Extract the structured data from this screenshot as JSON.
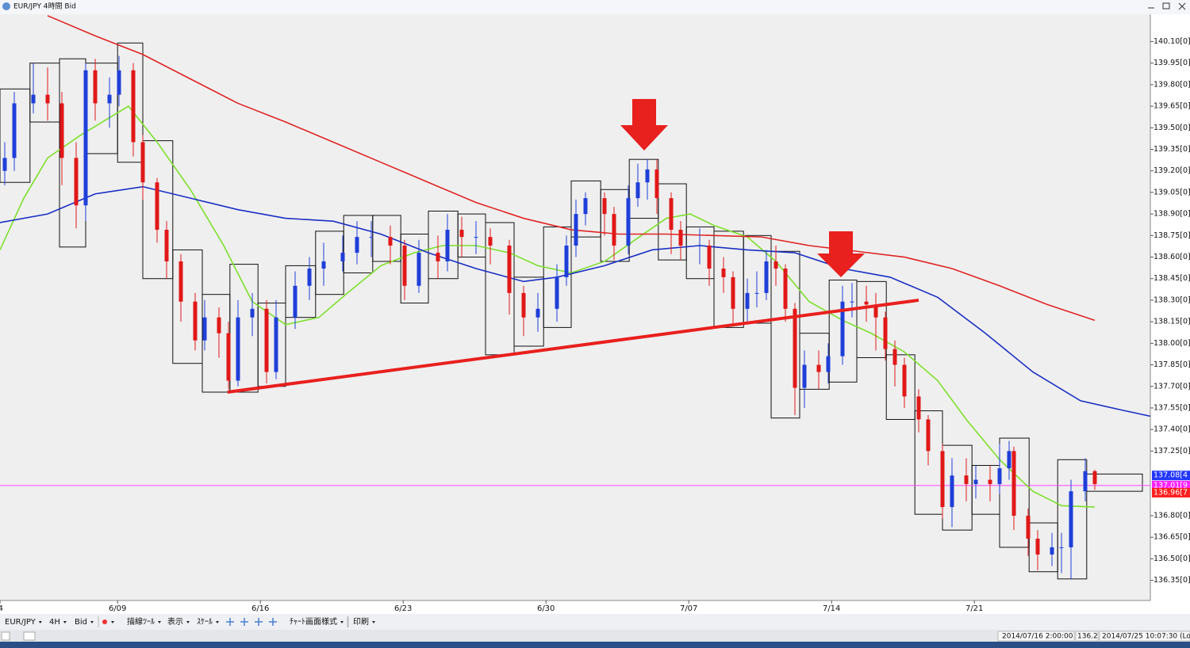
{
  "window": {
    "title": "EUR/JPY 4時間 Bid"
  },
  "chart_data": {
    "type": "candlestick",
    "x": [
      1,
      3,
      7,
      10,
      13,
      16,
      18,
      20,
      23,
      25,
      28,
      30,
      33,
      35,
      38,
      41,
      43,
      46,
      48,
      50,
      53,
      56,
      58,
      62,
      65,
      68,
      72,
      75,
      78,
      82,
      85,
      88,
      92,
      94,
      97,
      100,
      103,
      107,
      110,
      113,
      117,
      119,
      121,
      123,
      127,
      129,
      132,
      134,
      136,
      138,
      141,
      143,
      147,
      149,
      152,
      154,
      157,
      159,
      161,
      163,
      165,
      167,
      169,
      172,
      174,
      177,
      179,
      182,
      184,
      186,
      188,
      190,
      193,
      195,
      198,
      200,
      203,
      205,
      208,
      210,
      212,
      213,
      216,
      218,
      221,
      223,
      225,
      228,
      230
    ],
    "open": [
      139.2,
      139.29,
      139.67,
      139.73,
      139.67,
      139.29,
      138.96,
      139.9,
      139.67,
      139.73,
      139.9,
      139.4,
      139.12,
      138.79,
      138.57,
      138.29,
      138.02,
      138.18,
      138.07,
      137.74,
      138.18,
      138.24,
      137.8,
      138.18,
      138.4,
      138.52,
      138.57,
      138.63,
      138.74,
      138.74,
      138.68,
      138.4,
      138.63,
      138.57,
      138.79,
      138.74,
      138.74,
      138.68,
      138.35,
      138.18,
      138.24,
      138.46,
      138.68,
      138.9,
      139.01,
      138.9,
      138.68,
      139.01,
      139.12,
      139.21,
      139.01,
      138.79,
      138.68,
      138.68,
      138.52,
      138.46,
      138.24,
      138.35,
      138.35,
      138.57,
      138.52,
      138.24,
      137.69,
      137.85,
      137.8,
      137.91,
      138.29,
      138.29,
      138.27,
      138.18,
      137.96,
      137.85,
      137.63,
      137.47,
      137.25,
      136.86,
      137.08,
      137.02,
      137.05,
      137.02,
      137.13,
      137.25,
      136.8,
      136.64,
      136.53,
      136.58,
      136.58,
      136.97,
      137.11
    ],
    "high": [
      139.4,
      139.75,
      139.95,
      139.92,
      139.75,
      139.4,
      139.95,
      139.98,
      139.85,
      140.0,
      139.95,
      139.45,
      139.15,
      138.85,
      138.62,
      138.35,
      138.3,
      138.25,
      138.15,
      138.3,
      138.35,
      138.3,
      138.3,
      138.5,
      138.6,
      138.7,
      138.75,
      138.85,
      138.85,
      138.82,
      138.72,
      138.72,
      138.75,
      138.9,
      138.88,
      138.85,
      138.8,
      138.72,
      138.4,
      138.35,
      138.55,
      138.75,
      139.0,
      139.05,
      139.05,
      138.95,
      139.1,
      139.25,
      139.28,
      139.28,
      139.05,
      138.85,
      138.8,
      138.72,
      138.6,
      138.5,
      138.45,
      138.5,
      138.65,
      138.68,
      138.55,
      138.28,
      137.95,
      137.95,
      138.0,
      138.4,
      138.42,
      138.4,
      138.35,
      138.22,
      138.02,
      137.9,
      137.68,
      137.5,
      137.3,
      137.2,
      137.2,
      137.15,
      137.15,
      137.3,
      137.32,
      137.28,
      136.85,
      136.7,
      136.68,
      136.68,
      137.05,
      137.2,
      137.12
    ],
    "low": [
      139.1,
      139.2,
      139.6,
      139.55,
      139.1,
      138.8,
      138.85,
      139.55,
      139.5,
      139.65,
      139.3,
      139.0,
      138.7,
      138.45,
      138.15,
      137.95,
      137.95,
      137.9,
      137.68,
      137.7,
      138.05,
      137.72,
      137.75,
      138.1,
      138.3,
      138.4,
      138.5,
      138.55,
      138.6,
      138.55,
      138.3,
      138.35,
      138.45,
      138.5,
      138.6,
      138.62,
      138.55,
      138.2,
      138.05,
      138.08,
      138.15,
      138.4,
      138.6,
      138.82,
      138.75,
      138.58,
      138.62,
      138.95,
      139.0,
      138.9,
      138.62,
      138.58,
      138.55,
      138.4,
      138.35,
      138.12,
      138.15,
      138.25,
      138.3,
      138.4,
      138.15,
      137.5,
      137.55,
      137.68,
      137.72,
      137.85,
      138.18,
      138.15,
      137.95,
      137.88,
      137.7,
      137.55,
      137.38,
      137.15,
      136.78,
      136.72,
      136.9,
      136.92,
      136.9,
      136.95,
      137.05,
      136.7,
      136.52,
      136.42,
      136.45,
      136.4,
      136.36,
      136.9,
      136.98
    ],
    "close": [
      139.29,
      139.67,
      139.73,
      139.67,
      139.29,
      138.96,
      139.9,
      139.67,
      139.73,
      139.9,
      139.4,
      139.12,
      138.79,
      138.57,
      138.29,
      138.02,
      138.18,
      138.07,
      137.74,
      138.18,
      138.24,
      137.8,
      138.18,
      138.4,
      138.52,
      138.57,
      138.63,
      138.74,
      138.74,
      138.68,
      138.4,
      138.63,
      138.57,
      138.79,
      138.74,
      138.74,
      138.68,
      138.35,
      138.18,
      138.24,
      138.46,
      138.68,
      138.9,
      139.01,
      138.9,
      138.68,
      139.01,
      139.12,
      139.21,
      139.01,
      138.79,
      138.68,
      138.68,
      138.52,
      138.46,
      138.24,
      138.35,
      138.35,
      138.57,
      138.52,
      138.24,
      137.69,
      137.85,
      137.8,
      137.91,
      138.29,
      138.29,
      138.27,
      138.18,
      137.96,
      137.85,
      137.63,
      137.47,
      137.25,
      136.86,
      137.08,
      137.02,
      137.05,
      137.02,
      137.13,
      137.25,
      136.8,
      136.64,
      136.53,
      136.58,
      136.58,
      136.97,
      137.11,
      137.02
    ],
    "up_color": "#1f3fd8",
    "down_color": "#e01818",
    "boxes": {
      "x0": [
        0,
        6.3,
        12.5,
        18,
        24.7,
        30,
        36.3,
        42.5,
        48.3,
        54.2,
        60,
        66.3,
        72.2,
        78.3,
        84.2,
        90,
        96.2,
        102,
        108,
        114.2,
        120,
        126.2,
        132.2,
        138.3,
        144.2,
        150,
        156.2,
        162,
        168,
        174.2,
        180,
        186.2,
        192.2,
        198,
        204.2,
        210,
        216.2,
        222.2,
        228.3
      ],
      "x1": [
        6.3,
        12.5,
        18,
        24.7,
        30,
        36.3,
        42.5,
        48.3,
        54.2,
        60,
        66.3,
        72.2,
        78.3,
        84.2,
        90,
        96.2,
        102,
        108,
        114.2,
        120,
        126.2,
        132.2,
        138.3,
        144.2,
        150,
        156.2,
        162,
        168,
        174.2,
        180,
        186.2,
        192.2,
        198,
        204.2,
        210,
        216.2,
        222.2,
        228.3,
        240
      ],
      "high": [
        139.77,
        139.95,
        139.98,
        139.95,
        140.09,
        139.41,
        138.65,
        138.34,
        138.55,
        138.28,
        138.54,
        138.78,
        138.89,
        138.89,
        138.76,
        138.92,
        138.9,
        138.84,
        138.46,
        138.81,
        139.13,
        139.07,
        139.28,
        139.11,
        138.81,
        138.78,
        138.75,
        138.64,
        138.07,
        138.44,
        138.43,
        137.92,
        137.53,
        137.29,
        137.15,
        137.34,
        136.75,
        137.19,
        137.09
      ],
      "low": [
        139.12,
        139.54,
        138.67,
        139.32,
        139.26,
        138.45,
        137.86,
        137.66,
        137.66,
        137.7,
        138.18,
        138.34,
        138.49,
        138.57,
        138.28,
        138.45,
        138.6,
        137.92,
        137.98,
        138.11,
        138.74,
        138.57,
        138.87,
        138.58,
        138.45,
        138.11,
        138.14,
        137.48,
        137.68,
        137.73,
        137.9,
        137.47,
        136.81,
        136.7,
        136.81,
        136.58,
        136.41,
        136.36,
        136.97
      ]
    },
    "lines": [
      {
        "color": "#7de02a",
        "x": [
          0,
          5,
          10,
          17,
          27,
          33,
          40,
          47,
          53,
          60,
          67,
          73,
          80,
          87,
          93,
          100,
          107,
          113,
          120,
          127,
          133,
          140,
          145,
          150,
          157,
          163,
          170,
          177,
          183,
          190,
          197,
          203,
          210,
          217,
          223,
          230
        ],
        "values": [
          138.65,
          139.01,
          139.29,
          139.45,
          139.65,
          139.4,
          139.07,
          138.68,
          138.29,
          138.13,
          138.18,
          138.35,
          138.54,
          138.63,
          138.68,
          138.68,
          138.63,
          138.54,
          138.49,
          138.57,
          138.71,
          138.87,
          138.9,
          138.82,
          138.74,
          138.57,
          138.29,
          138.16,
          138.07,
          137.94,
          137.74,
          137.47,
          137.19,
          136.97,
          136.87,
          136.86
        ]
      },
      {
        "color": "#1a2fc4",
        "x": [
          0,
          10,
          20,
          30,
          40,
          50,
          60,
          70,
          80,
          90,
          100,
          110,
          117,
          127,
          137,
          147,
          157,
          167,
          177,
          187,
          197,
          207,
          217,
          227,
          235,
          242
        ],
        "values": [
          138.84,
          138.9,
          139.04,
          139.09,
          139.01,
          138.93,
          138.87,
          138.85,
          138.76,
          138.63,
          138.52,
          138.43,
          138.46,
          138.54,
          138.65,
          138.68,
          138.65,
          138.63,
          138.52,
          138.46,
          138.32,
          138.07,
          137.8,
          137.6,
          137.54,
          137.49
        ]
      },
      {
        "color": "#e02424",
        "x": [
          10,
          20,
          30,
          40,
          50,
          60,
          70,
          80,
          90,
          100,
          110,
          120,
          130,
          140,
          150,
          160,
          170,
          180,
          190,
          200,
          210,
          220,
          230
        ],
        "values": [
          140.28,
          140.14,
          140.01,
          139.84,
          139.67,
          139.54,
          139.4,
          139.26,
          139.12,
          138.98,
          138.87,
          138.79,
          138.76,
          138.76,
          138.75,
          138.74,
          138.68,
          138.64,
          138.6,
          138.52,
          138.4,
          138.27,
          138.16
        ]
      }
    ],
    "trendline": {
      "color": "#e8201e",
      "x": [
        47.8,
        193
      ],
      "values": [
        137.66,
        138.3
      ]
    },
    "price_tags": [
      {
        "value": 137.08,
        "label": "137.08[4",
        "color": "#2236ff"
      },
      {
        "value": 137.01,
        "label": "137.01[9",
        "color": "#ff22ff"
      },
      {
        "value": 136.96,
        "label": "136.96[7",
        "color": "#ff2020"
      }
    ],
    "current_line_color": "#ff44ff",
    "xlim": [
      0,
      242
    ],
    "ylim": [
      136.21,
      140.29
    ],
    "xticks": [
      {
        "value": 0,
        "label": "4"
      },
      {
        "value": 24.7,
        "label": "6/09"
      },
      {
        "value": 54.7,
        "label": "6/16"
      },
      {
        "value": 84.7,
        "label": "6/23"
      },
      {
        "value": 114.7,
        "label": "6/30"
      },
      {
        "value": 144.7,
        "label": "7/07"
      },
      {
        "value": 174.7,
        "label": "7/14"
      },
      {
        "value": 204.7,
        "label": "7/21"
      }
    ],
    "yticks": [
      {
        "value": 140.1,
        "label": "140.10[0]"
      },
      {
        "value": 139.95,
        "label": "139.95[0]"
      },
      {
        "value": 139.8,
        "label": "139.80[0]"
      },
      {
        "value": 139.65,
        "label": "139.65[0]"
      },
      {
        "value": 139.5,
        "label": "139.50[0]"
      },
      {
        "value": 139.35,
        "label": "139.35[0]"
      },
      {
        "value": 139.2,
        "label": "139.20[0]"
      },
      {
        "value": 139.05,
        "label": "139.05[0]"
      },
      {
        "value": 138.9,
        "label": "138.90[0]"
      },
      {
        "value": 138.75,
        "label": "138.75[0]"
      },
      {
        "value": 138.6,
        "label": "138.60[0]"
      },
      {
        "value": 138.45,
        "label": "138.45[0]"
      },
      {
        "value": 138.3,
        "label": "138.30[0]"
      },
      {
        "value": 138.15,
        "label": "138.15[0]"
      },
      {
        "value": 138.0,
        "label": "138.00[0]"
      },
      {
        "value": 137.85,
        "label": "137.85[0]"
      },
      {
        "value": 137.7,
        "label": "137.70[0]"
      },
      {
        "value": 137.55,
        "label": "137.55[0]"
      },
      {
        "value": 137.4,
        "label": "137.40[0]"
      },
      {
        "value": 137.25,
        "label": "137.25[0]"
      },
      {
        "value": 136.8,
        "label": "136.80[0]"
      },
      {
        "value": 136.65,
        "label": "136.65[0]"
      },
      {
        "value": 136.5,
        "label": "136.50[0]"
      },
      {
        "value": 136.35,
        "label": "136.35[0]"
      }
    ]
  },
  "toolbar": {
    "items": [
      "EUR/JPY",
      "4H",
      "Bid",
      "描線ﾂｰﾙ",
      "表示",
      "ｽｹｰﾙ",
      "ﾁｬｰﾄ画面様式",
      "印刷"
    ]
  },
  "status_bar": {
    "items": [
      "2014/07/16 2:00:00",
      "136.2",
      "2014/07/25 10:07:30 (Lo"
    ]
  }
}
